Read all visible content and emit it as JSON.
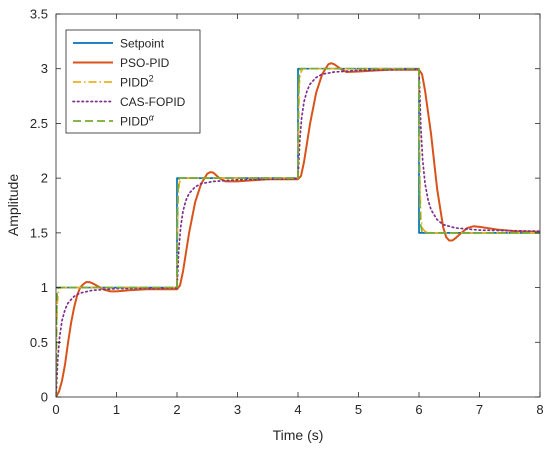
{
  "chart_data": {
    "type": "line",
    "xlabel": "Time (s)",
    "ylabel": "Amplitude",
    "xlim": [
      0,
      8
    ],
    "ylim": [
      0,
      3.5
    ],
    "xticks": [
      "0",
      "1",
      "2",
      "3",
      "4",
      "5",
      "6",
      "7",
      "8"
    ],
    "yticks": [
      "0",
      "0.5",
      "1",
      "1.5",
      "2",
      "2.5",
      "3",
      "3.5"
    ],
    "grid": false,
    "legend_position": "top-left",
    "series": [
      {
        "name": "Setpoint",
        "color": "#0072BD",
        "dash": "solid",
        "points": [
          [
            0,
            1
          ],
          [
            2,
            1
          ],
          [
            2,
            2
          ],
          [
            4,
            2
          ],
          [
            4,
            3
          ],
          [
            6,
            3
          ],
          [
            6,
            1.5
          ],
          [
            8,
            1.5
          ]
        ]
      },
      {
        "name": "PSO-PID",
        "color": "#D95319",
        "dash": "solid",
        "points": [
          [
            0,
            0
          ],
          [
            0.05,
            0.05
          ],
          [
            0.1,
            0.15
          ],
          [
            0.15,
            0.3
          ],
          [
            0.2,
            0.5
          ],
          [
            0.25,
            0.68
          ],
          [
            0.3,
            0.82
          ],
          [
            0.35,
            0.93
          ],
          [
            0.4,
            1.0
          ],
          [
            0.45,
            1.03
          ],
          [
            0.5,
            1.05
          ],
          [
            0.55,
            1.05
          ],
          [
            0.6,
            1.04
          ],
          [
            0.7,
            1.01
          ],
          [
            0.8,
            0.98
          ],
          [
            0.9,
            0.965
          ],
          [
            1.0,
            0.965
          ],
          [
            1.2,
            0.975
          ],
          [
            1.5,
            0.985
          ],
          [
            2.0,
            0.985
          ],
          [
            2.05,
            1.02
          ],
          [
            2.1,
            1.15
          ],
          [
            2.2,
            1.5
          ],
          [
            2.3,
            1.78
          ],
          [
            2.4,
            1.95
          ],
          [
            2.5,
            2.04
          ],
          [
            2.55,
            2.055
          ],
          [
            2.6,
            2.05
          ],
          [
            2.7,
            2.0
          ],
          [
            2.8,
            1.97
          ],
          [
            3.0,
            1.97
          ],
          [
            3.5,
            1.99
          ],
          [
            4.0,
            1.99
          ],
          [
            4.05,
            2.02
          ],
          [
            4.1,
            2.15
          ],
          [
            4.2,
            2.5
          ],
          [
            4.3,
            2.78
          ],
          [
            4.4,
            2.95
          ],
          [
            4.5,
            3.04
          ],
          [
            4.55,
            3.05
          ],
          [
            4.6,
            3.04
          ],
          [
            4.7,
            3.0
          ],
          [
            4.8,
            2.97
          ],
          [
            5.0,
            2.975
          ],
          [
            5.5,
            2.99
          ],
          [
            6.0,
            2.99
          ],
          [
            6.05,
            2.95
          ],
          [
            6.1,
            2.8
          ],
          [
            6.2,
            2.4
          ],
          [
            6.3,
            1.9
          ],
          [
            6.4,
            1.55
          ],
          [
            6.45,
            1.46
          ],
          [
            6.5,
            1.43
          ],
          [
            6.55,
            1.43
          ],
          [
            6.6,
            1.45
          ],
          [
            6.7,
            1.5
          ],
          [
            6.8,
            1.545
          ],
          [
            6.9,
            1.56
          ],
          [
            7.0,
            1.555
          ],
          [
            7.3,
            1.53
          ],
          [
            7.6,
            1.515
          ],
          [
            8.0,
            1.51
          ]
        ]
      },
      {
        "name": "PIDD$^2$",
        "color": "#EDB120",
        "dash": "dashdot",
        "points": [
          [
            0,
            0
          ],
          [
            0.01,
            0.6
          ],
          [
            0.02,
            0.85
          ],
          [
            0.04,
            0.96
          ],
          [
            0.08,
            1.0
          ],
          [
            0.2,
            1.0
          ],
          [
            2.0,
            1.0
          ],
          [
            2.01,
            1.6
          ],
          [
            2.02,
            1.85
          ],
          [
            2.04,
            1.96
          ],
          [
            2.08,
            2.0
          ],
          [
            4.0,
            2.0
          ],
          [
            4.01,
            2.6
          ],
          [
            4.02,
            2.85
          ],
          [
            4.04,
            2.96
          ],
          [
            4.08,
            3.0
          ],
          [
            6.0,
            3.0
          ],
          [
            6.01,
            2.1
          ],
          [
            6.03,
            1.65
          ],
          [
            6.05,
            1.55
          ],
          [
            6.1,
            1.51
          ],
          [
            6.2,
            1.5
          ],
          [
            8.0,
            1.5
          ]
        ]
      },
      {
        "name": "CAS-FOPID",
        "color": "#7E2F8E",
        "dash": "dotted",
        "points": [
          [
            0,
            0
          ],
          [
            0.03,
            0.35
          ],
          [
            0.06,
            0.55
          ],
          [
            0.1,
            0.7
          ],
          [
            0.15,
            0.8
          ],
          [
            0.2,
            0.86
          ],
          [
            0.3,
            0.92
          ],
          [
            0.4,
            0.95
          ],
          [
            0.6,
            0.975
          ],
          [
            1.0,
            0.99
          ],
          [
            2.0,
            0.995
          ],
          [
            2.03,
            1.35
          ],
          [
            2.06,
            1.55
          ],
          [
            2.1,
            1.7
          ],
          [
            2.15,
            1.8
          ],
          [
            2.2,
            1.86
          ],
          [
            2.3,
            1.92
          ],
          [
            2.4,
            1.95
          ],
          [
            2.6,
            1.97
          ],
          [
            3.0,
            1.985
          ],
          [
            4.0,
            1.995
          ],
          [
            4.03,
            2.35
          ],
          [
            4.06,
            2.55
          ],
          [
            4.1,
            2.7
          ],
          [
            4.15,
            2.8
          ],
          [
            4.2,
            2.86
          ],
          [
            4.3,
            2.92
          ],
          [
            4.4,
            2.95
          ],
          [
            4.6,
            2.97
          ],
          [
            5.0,
            2.985
          ],
          [
            6.0,
            2.995
          ],
          [
            6.03,
            2.47
          ],
          [
            6.06,
            2.17
          ],
          [
            6.1,
            1.95
          ],
          [
            6.15,
            1.8
          ],
          [
            6.2,
            1.71
          ],
          [
            6.3,
            1.62
          ],
          [
            6.4,
            1.575
          ],
          [
            6.6,
            1.545
          ],
          [
            7.0,
            1.525
          ],
          [
            8.0,
            1.515
          ]
        ]
      },
      {
        "name": "PIDD$^\\alpha$",
        "color": "#77AC30",
        "dash": "dashed",
        "points": [
          [
            0,
            0
          ],
          [
            0.01,
            0.75
          ],
          [
            0.02,
            0.95
          ],
          [
            0.04,
            1.0
          ],
          [
            2.0,
            1.0
          ],
          [
            2.01,
            1.75
          ],
          [
            2.02,
            1.95
          ],
          [
            2.04,
            2.0
          ],
          [
            4.0,
            2.0
          ],
          [
            4.01,
            2.75
          ],
          [
            4.02,
            2.95
          ],
          [
            4.04,
            3.0
          ],
          [
            6.0,
            3.0
          ],
          [
            6.01,
            1.9
          ],
          [
            6.02,
            1.6
          ],
          [
            6.05,
            1.51
          ],
          [
            6.1,
            1.5
          ],
          [
            8.0,
            1.5
          ]
        ]
      }
    ]
  }
}
